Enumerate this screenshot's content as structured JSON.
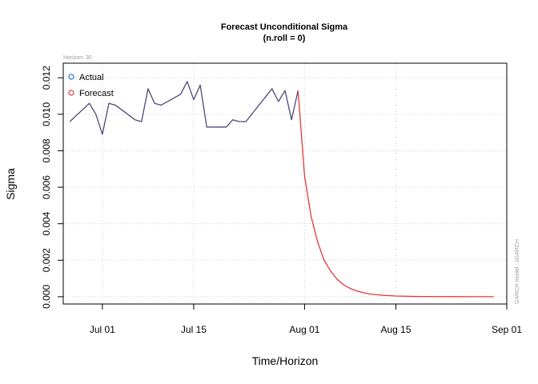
{
  "chart_data": {
    "type": "line",
    "title": "Forecast Unconditional Sigma",
    "subtitle": "(n.roll = 0)",
    "xlabel": "Time/Horizon",
    "ylabel": "Sigma",
    "horizon_note": "Horizon: 30",
    "side_note": "GARCH model : sGARCH",
    "x_ticks": [
      "Jul 01",
      "Jul 15",
      "Aug 01",
      "Aug 15",
      "Sep 01"
    ],
    "y_ticks": [
      "0.000",
      "0.002",
      "0.004",
      "0.006",
      "0.008",
      "0.010",
      "0.012"
    ],
    "ylim": [
      -0.0004,
      0.0128
    ],
    "xlim": [
      "2020-06-25",
      "2020-09-01"
    ],
    "grid": true,
    "legend_position": "top-left",
    "series": [
      {
        "name": "Actual",
        "color": "#4a4a7a",
        "x": [
          "2020-06-26",
          "2020-06-29",
          "2020-06-30",
          "2020-07-01",
          "2020-07-02",
          "2020-07-03",
          "2020-07-06",
          "2020-07-07",
          "2020-07-08",
          "2020-07-09",
          "2020-07-10",
          "2020-07-13",
          "2020-07-14",
          "2020-07-15",
          "2020-07-16",
          "2020-07-17",
          "2020-07-20",
          "2020-07-21",
          "2020-07-22",
          "2020-07-23",
          "2020-07-27",
          "2020-07-28",
          "2020-07-29",
          "2020-07-30",
          "2020-07-31"
        ],
        "values": [
          0.0096,
          0.0106,
          0.01,
          0.0089,
          0.0106,
          0.0105,
          0.0097,
          0.0096,
          0.0114,
          0.0106,
          0.0105,
          0.0111,
          0.0118,
          0.0108,
          0.0116,
          0.0093,
          0.0093,
          0.0097,
          0.0096,
          0.0096,
          0.0114,
          0.0107,
          0.0113,
          0.0097,
          0.0113
        ]
      },
      {
        "name": "Forecast",
        "color": "#e03a3a",
        "x": [
          "2020-07-31",
          "2020-08-01",
          "2020-08-02",
          "2020-08-03",
          "2020-08-04",
          "2020-08-05",
          "2020-08-06",
          "2020-08-07",
          "2020-08-08",
          "2020-08-09",
          "2020-08-10",
          "2020-08-11",
          "2020-08-12",
          "2020-08-13",
          "2020-08-14",
          "2020-08-15",
          "2020-08-16",
          "2020-08-17",
          "2020-08-18",
          "2020-08-19",
          "2020-08-20",
          "2020-08-21",
          "2020-08-22",
          "2020-08-23",
          "2020-08-24",
          "2020-08-25",
          "2020-08-26",
          "2020-08-27",
          "2020-08-28",
          "2020-08-29",
          "2020-08-30"
        ],
        "values": [
          0.0113,
          0.0066,
          0.0044,
          0.003,
          0.002,
          0.0014,
          0.00095,
          0.00065,
          0.00045,
          0.00032,
          0.00022,
          0.00015,
          0.00011,
          8e-05,
          6e-05,
          4e-05,
          3e-05,
          2e-05,
          1.5e-05,
          1e-05,
          8e-06,
          6e-06,
          4e-06,
          3e-06,
          2e-06,
          2e-06,
          1e-06,
          1e-06,
          1e-06,
          5e-07,
          5e-07
        ]
      }
    ]
  }
}
